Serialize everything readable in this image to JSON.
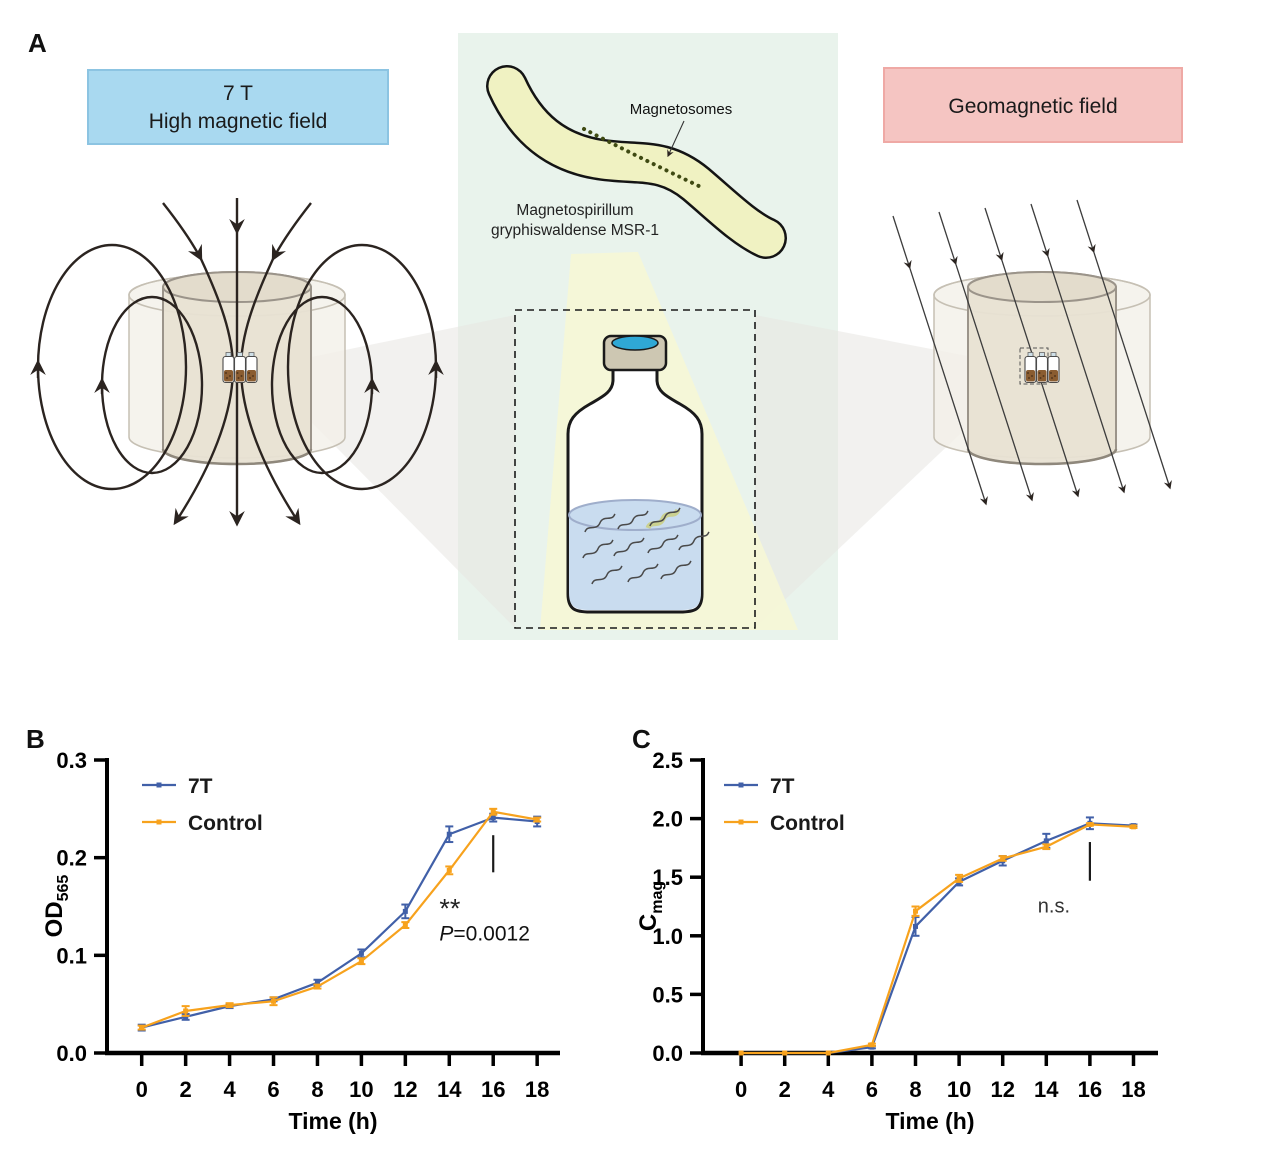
{
  "figure_labels": {
    "a": "A"
  },
  "panel_a": {
    "left_box": {
      "line1": "7 T",
      "line2": "High magnetic field"
    },
    "right_box": {
      "label": "Geomagnetic field"
    },
    "center": {
      "magnetosomes_label": "Magnetosomes",
      "species_line1": "Magnetospirillum",
      "species_line2": "gryphiswaldense MSR-1"
    },
    "colors": {
      "high_field_box_fill": "#A9D9F0",
      "geomagnetic_box_fill": "#F5C5C2",
      "center_panel_bg": "#E9F3EC",
      "bacterium_fill": "#F0F2C2",
      "magnetosome_dot": "#3F4A12",
      "bottle_cap_septum": "#2FA8D5",
      "culture_liquid": "#C9DCEF"
    }
  },
  "chart_data": [
    {
      "id": "b",
      "panel_label": "B",
      "type": "line",
      "xlabel": "Time (h)",
      "ylabel_main": "OD",
      "ylabel_sub": "565",
      "x": [
        0,
        2,
        4,
        6,
        8,
        10,
        12,
        14,
        16,
        18
      ],
      "x_tick_labels": [
        "0",
        "2",
        "4",
        "6",
        "8",
        "10",
        "12",
        "14",
        "16",
        "18"
      ],
      "ylim": [
        0,
        0.3
      ],
      "y_ticks": [
        0,
        0.1,
        0.2,
        0.3
      ],
      "y_tick_labels": [
        "0.0",
        "0.1",
        "0.2",
        "0.3"
      ],
      "grid": false,
      "legend_position": "top-left",
      "series": [
        {
          "name": "7T",
          "color": "#4160A8",
          "values": [
            0.026,
            0.037,
            0.048,
            0.055,
            0.072,
            0.102,
            0.145,
            0.224,
            0.241,
            0.237
          ],
          "errors": [
            0.003,
            0.003,
            0.002,
            0.002,
            0.003,
            0.004,
            0.007,
            0.008,
            0.004,
            0.005
          ]
        },
        {
          "name": "Control",
          "color": "#F7A21D",
          "values": [
            0.026,
            0.043,
            0.049,
            0.053,
            0.068,
            0.094,
            0.131,
            0.187,
            0.247,
            0.239
          ],
          "errors": [
            0.002,
            0.005,
            0.002,
            0.004,
            0.002,
            0.003,
            0.003,
            0.004,
            0.003,
            0.002
          ]
        }
      ],
      "annotations": {
        "stars": "**",
        "stars_at": [
          13.55,
          0.148
        ],
        "p_italic": "P",
        "p_rest": "=0.0012",
        "p_at": [
          13.55,
          0.115
        ],
        "sig_line": {
          "x": 16,
          "from": 0.185,
          "to": 0.223
        }
      }
    },
    {
      "id": "c",
      "panel_label": "C",
      "type": "line",
      "xlabel": "Time (h)",
      "ylabel_main": "C",
      "ylabel_sub": "mag",
      "x": [
        0,
        2,
        4,
        6,
        8,
        10,
        12,
        14,
        16,
        18
      ],
      "x_tick_labels": [
        "0",
        "2",
        "4",
        "6",
        "8",
        "10",
        "12",
        "14",
        "16",
        "18"
      ],
      "ylim": [
        0,
        2.5
      ],
      "y_ticks": [
        0,
        0.5,
        1,
        1.5,
        2,
        2.5
      ],
      "y_tick_labels": [
        "0.0",
        "0.5",
        "1.0",
        "1.5",
        "2.0",
        "2.5"
      ],
      "grid": false,
      "legend_position": "top-left",
      "series": [
        {
          "name": "7T",
          "color": "#4160A8",
          "values": [
            0,
            0,
            0,
            0.05,
            1.08,
            1.46,
            1.64,
            1.81,
            1.96,
            1.94
          ],
          "errors": [
            0,
            0,
            0,
            0.01,
            0.08,
            0.03,
            0.04,
            0.06,
            0.05,
            0.01
          ]
        },
        {
          "name": "Control",
          "color": "#F7A21D",
          "values": [
            0,
            0,
            0,
            0.07,
            1.21,
            1.49,
            1.66,
            1.76,
            1.95,
            1.93
          ],
          "errors": [
            0,
            0,
            0,
            0.01,
            0.04,
            0.03,
            0.02,
            0.02,
            0.01,
            0.01
          ]
        }
      ],
      "annotations": {
        "ns": "n.s.",
        "ns_at": [
          14.35,
          1.2
        ],
        "sig_line": {
          "x": 16,
          "from": 1.47,
          "to": 1.8
        }
      }
    }
  ]
}
